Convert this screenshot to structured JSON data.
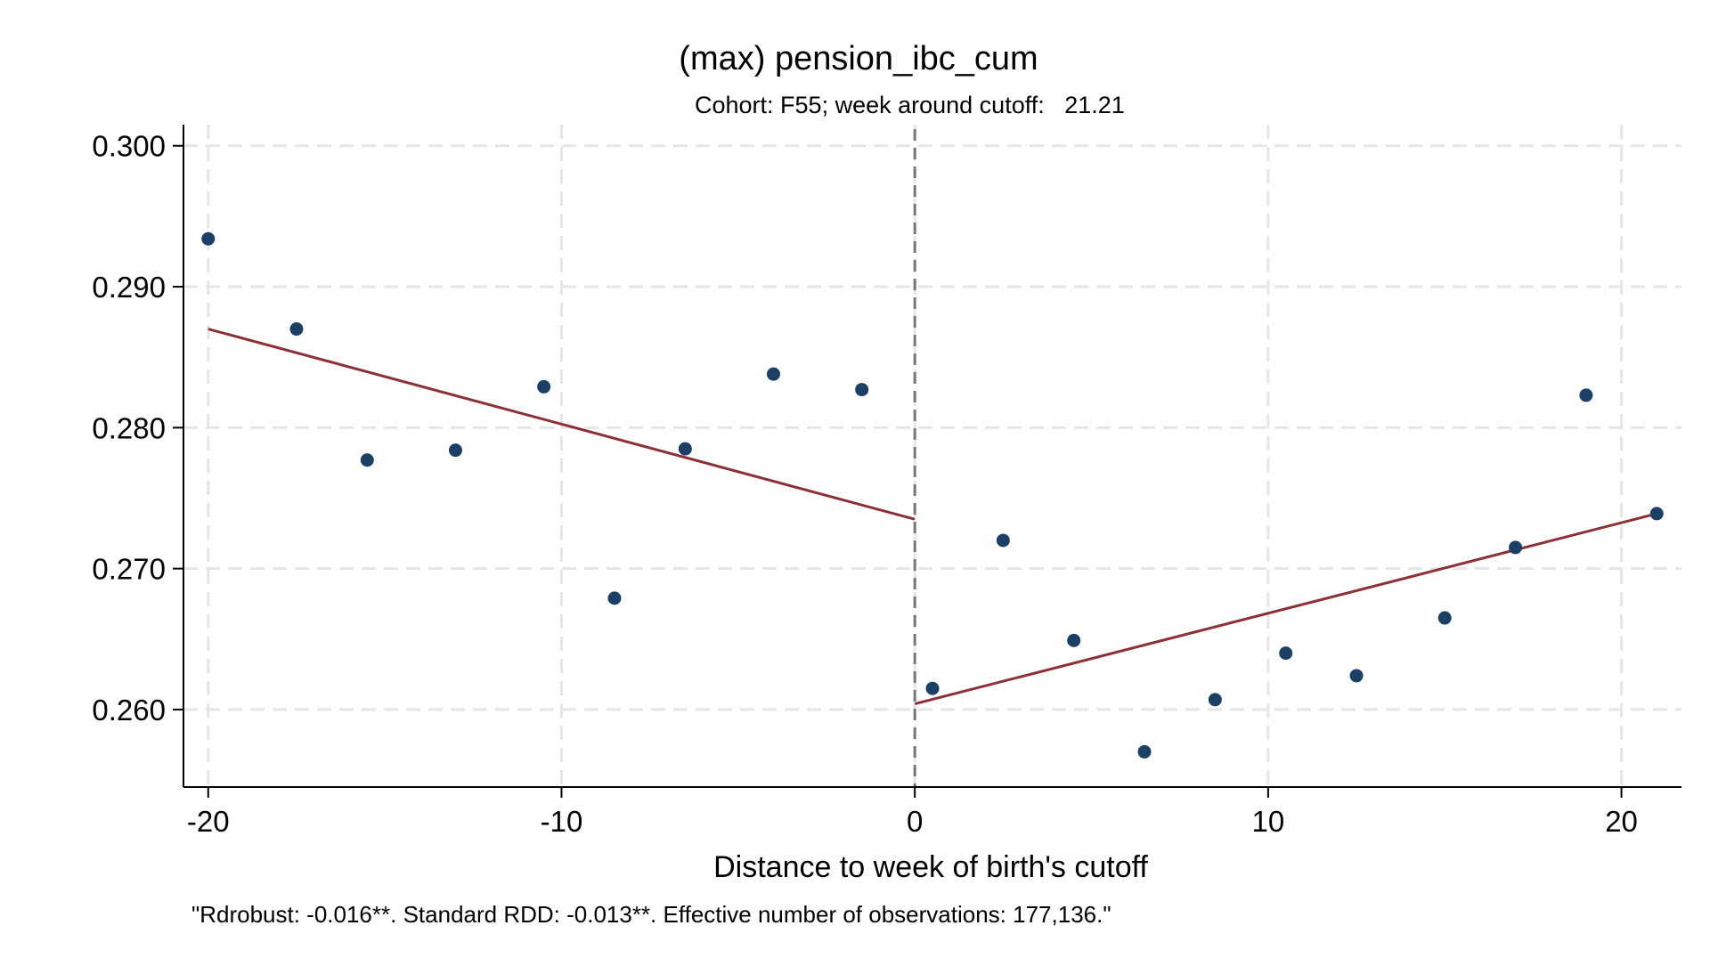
{
  "chart_data": {
    "type": "scatter",
    "title": "(max) pension_ibc_cum",
    "subtitle": "Cohort: F55; week around cutoff:   21.21",
    "xlabel": "Distance to week of birth's cutoff",
    "ylabel": "",
    "note": "\"Rdrobust: -0.016**. Standard RDD: -0.013**. Effective number of observations: 177,136.\"",
    "xlim": [
      -20.7,
      21.7
    ],
    "ylim": [
      0.2545,
      0.3015
    ],
    "x_ticks": [
      -20,
      -10,
      0,
      10,
      20
    ],
    "x_tick_labels": [
      "-20",
      "-10",
      "0",
      "10",
      "20"
    ],
    "y_ticks": [
      0.26,
      0.27,
      0.28,
      0.29,
      0.3
    ],
    "y_tick_labels": [
      "0.260",
      "0.270",
      "0.280",
      "0.290",
      "0.300"
    ],
    "grid": true,
    "cutoff": 0,
    "colors": {
      "points": "#1c3f66",
      "fit": "#8b3036",
      "cutoff_line": "#777777",
      "grid": "#e6e6e6"
    },
    "series": [
      {
        "type": "scatter",
        "x": [
          -20,
          -17.5,
          -15.5,
          -13,
          -10.5,
          -8.5,
          -6.5,
          -4,
          -1.5,
          0.5,
          2.5,
          4.5,
          6.5,
          8.5,
          10.5,
          12.5,
          15,
          17,
          19,
          21
        ],
        "y": [
          0.2934,
          0.287,
          0.2777,
          0.2784,
          0.2829,
          0.2679,
          0.2785,
          0.2838,
          0.2827,
          0.2615,
          0.272,
          0.2649,
          0.257,
          0.2607,
          0.264,
          0.2624,
          0.2665,
          0.2715,
          0.2823,
          0.2739
        ]
      },
      {
        "type": "line",
        "x": [
          -20,
          0
        ],
        "y": [
          0.287,
          0.2735
        ]
      },
      {
        "type": "line",
        "x": [
          0,
          21
        ],
        "y": [
          0.2604,
          0.2739
        ]
      }
    ]
  }
}
